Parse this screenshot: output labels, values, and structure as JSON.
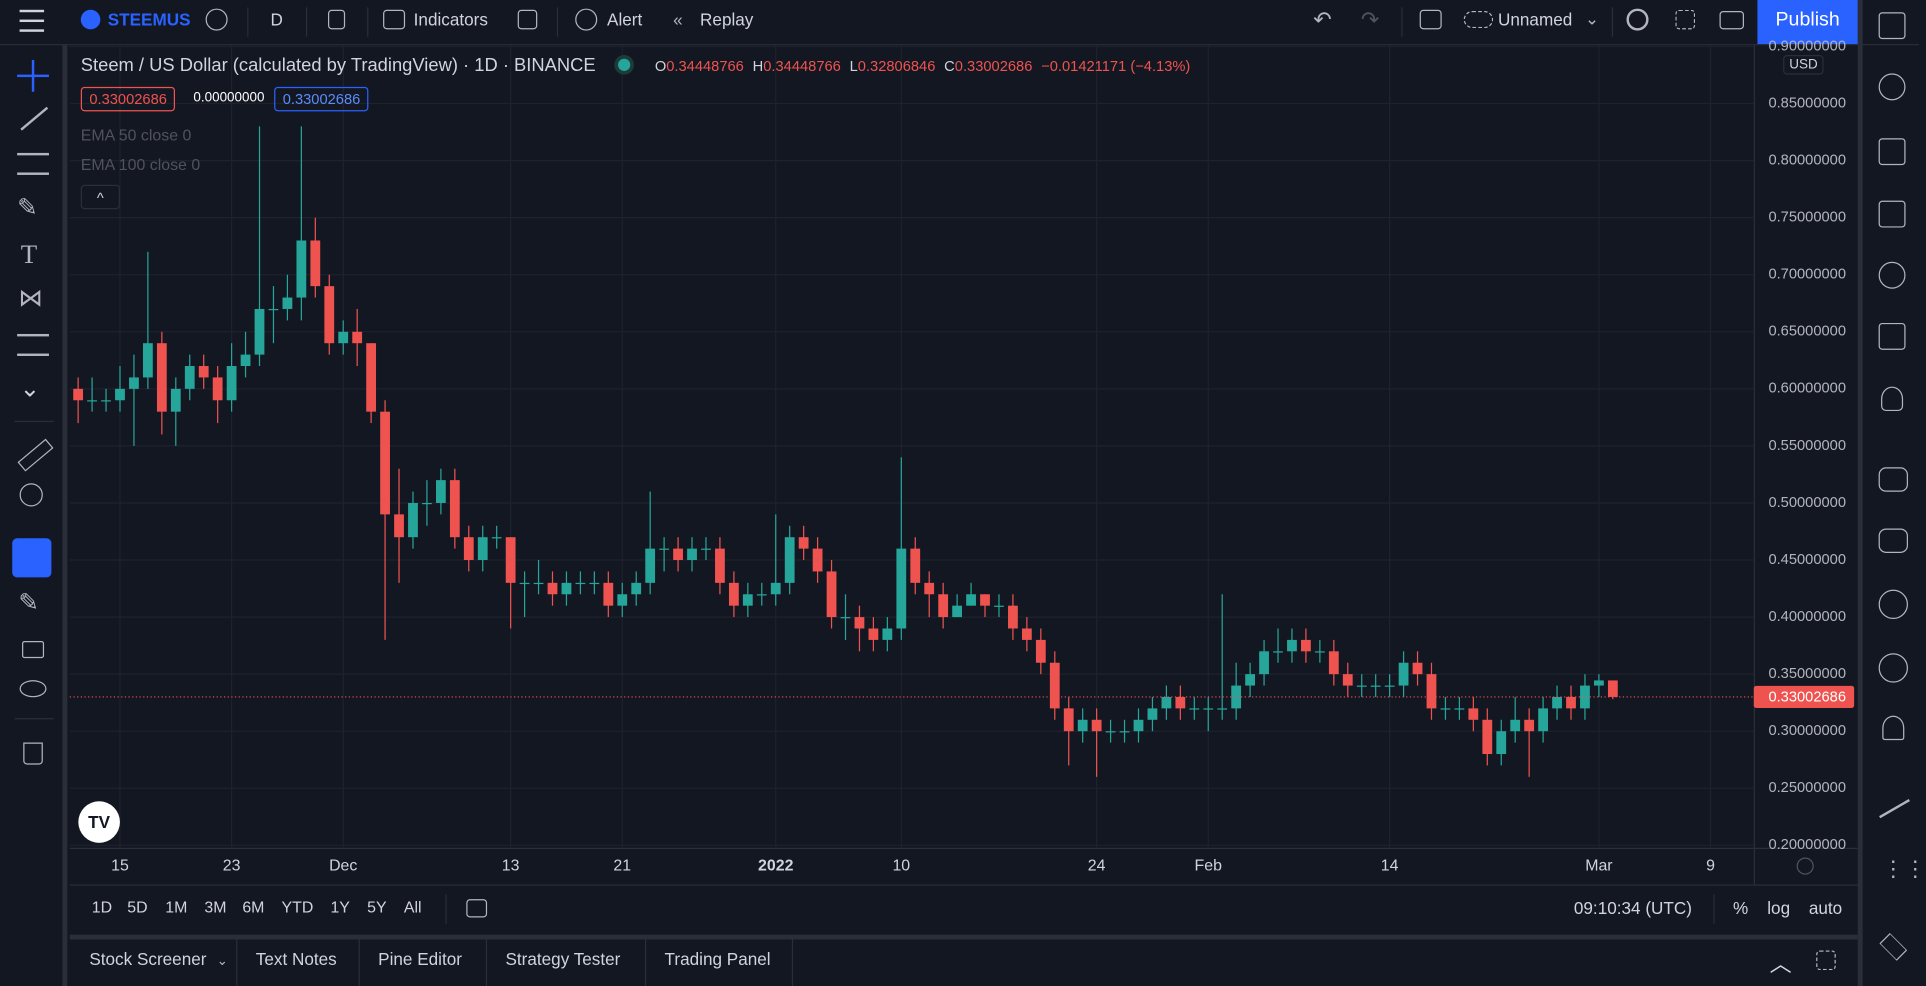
{
  "ui": {
    "symbol": "STEEMUS",
    "interval": "D",
    "indicators": "Indicators",
    "alert": "Alert",
    "replay": "Replay",
    "layout_name": "Unnamed",
    "publish": "Publish",
    "legend_title": "Steem / US Dollar (calculated by TradingView) · 1D · BINANCE",
    "o_label": "O",
    "h_label": "H",
    "l_label": "L",
    "c_label": "C",
    "change": "−0.01421171 (−4.13%)",
    "bid": "0.33002686",
    "spread": "0.00000000",
    "ask": "0.33002686",
    "ema50": "EMA 50 close 0",
    "ema100": "EMA 100 close 0",
    "currency": "USD",
    "ranges": [
      "1D",
      "5D",
      "1M",
      "3M",
      "6M",
      "YTD",
      "1Y",
      "5Y",
      "All"
    ],
    "clock": "09:10:34 (UTC)",
    "percent": "%",
    "log": "log",
    "auto": "auto",
    "tabs": [
      "Stock Screener",
      "Text Notes",
      "Pine Editor",
      "Strategy Tester",
      "Trading Panel"
    ]
  },
  "chart_data": {
    "type": "candlestick",
    "up_color": "#26a69a",
    "down_color": "#ef5350",
    "grid": true,
    "xlim": [
      -0.6,
      120.1
    ],
    "xticks": [
      {
        "value": 3,
        "label": "15"
      },
      {
        "value": 11,
        "label": "23"
      },
      {
        "value": 19,
        "label": "Dec"
      },
      {
        "value": 31,
        "label": "13"
      },
      {
        "value": 39,
        "label": "21"
      },
      {
        "value": 50,
        "label": "2022"
      },
      {
        "value": 59,
        "label": "10"
      },
      {
        "value": 73,
        "label": "24"
      },
      {
        "value": 81,
        "label": "Feb"
      },
      {
        "value": 94,
        "label": "14"
      },
      {
        "value": 109,
        "label": "Mar"
      },
      {
        "value": 117,
        "label": "9"
      }
    ],
    "ylim": [
      0.2,
      0.9
    ],
    "yticks": [
      {
        "value": 0.2,
        "label": "0.20000000"
      },
      {
        "value": 0.25,
        "label": "0.25000000"
      },
      {
        "value": 0.3,
        "label": "0.30000000"
      },
      {
        "value": 0.35,
        "label": "0.35000000"
      },
      {
        "value": 0.4,
        "label": "0.40000000"
      },
      {
        "value": 0.45,
        "label": "0.45000000"
      },
      {
        "value": 0.5,
        "label": "0.50000000"
      },
      {
        "value": 0.55,
        "label": "0.55000000"
      },
      {
        "value": 0.6,
        "label": "0.60000000"
      },
      {
        "value": 0.65,
        "label": "0.65000000"
      },
      {
        "value": 0.7,
        "label": "0.70000000"
      },
      {
        "value": 0.75,
        "label": "0.75000000"
      },
      {
        "value": 0.8,
        "label": "0.80000000"
      },
      {
        "value": 0.85,
        "label": "0.85000000"
      },
      {
        "value": 0.9,
        "label": "0.90000000"
      }
    ],
    "last_price": 0.33002686,
    "open": [
      0.6,
      0.59,
      0.59,
      0.59,
      0.6,
      0.61,
      0.64,
      0.58,
      0.6,
      0.62,
      0.61,
      0.59,
      0.62,
      0.63,
      0.67,
      0.67,
      0.68,
      0.73,
      0.69,
      0.64,
      0.65,
      0.64,
      0.58,
      0.49,
      0.47,
      0.5,
      0.5,
      0.52,
      0.47,
      0.45,
      0.47,
      0.47,
      0.43,
      0.43,
      0.43,
      0.42,
      0.43,
      0.43,
      0.43,
      0.41,
      0.42,
      0.43,
      0.46,
      0.46,
      0.45,
      0.46,
      0.46,
      0.43,
      0.41,
      0.42,
      0.42,
      0.43,
      0.47,
      0.46,
      0.44,
      0.4,
      0.4,
      0.39,
      0.38,
      0.39,
      0.46,
      0.43,
      0.42,
      0.4,
      0.41,
      0.42,
      0.41,
      0.41,
      0.39,
      0.38,
      0.36,
      0.32,
      0.3,
      0.31,
      0.3,
      0.3,
      0.3,
      0.31,
      0.32,
      0.33,
      0.32,
      0.32,
      0.32,
      0.32,
      0.34,
      0.35,
      0.37,
      0.37,
      0.38,
      0.37,
      0.37,
      0.35,
      0.34,
      0.34,
      0.34,
      0.34,
      0.36,
      0.35,
      0.32,
      0.32,
      0.32,
      0.31,
      0.28,
      0.3,
      0.31,
      0.3,
      0.32,
      0.33,
      0.32,
      0.34,
      0.34448766
    ],
    "high": [
      0.61,
      0.61,
      0.6,
      0.62,
      0.63,
      0.72,
      0.65,
      0.61,
      0.63,
      0.63,
      0.62,
      0.64,
      0.65,
      0.83,
      0.69,
      0.7,
      0.83,
      0.75,
      0.7,
      0.66,
      0.67,
      0.64,
      0.59,
      0.53,
      0.51,
      0.52,
      0.53,
      0.53,
      0.48,
      0.48,
      0.48,
      0.47,
      0.44,
      0.45,
      0.44,
      0.44,
      0.44,
      0.44,
      0.44,
      0.43,
      0.44,
      0.51,
      0.47,
      0.47,
      0.47,
      0.47,
      0.47,
      0.44,
      0.43,
      0.43,
      0.49,
      0.48,
      0.48,
      0.47,
      0.45,
      0.42,
      0.41,
      0.4,
      0.4,
      0.54,
      0.47,
      0.44,
      0.43,
      0.42,
      0.43,
      0.42,
      0.42,
      0.42,
      0.4,
      0.39,
      0.37,
      0.33,
      0.32,
      0.32,
      0.31,
      0.31,
      0.32,
      0.33,
      0.34,
      0.34,
      0.33,
      0.33,
      0.42,
      0.36,
      0.36,
      0.38,
      0.39,
      0.39,
      0.39,
      0.38,
      0.38,
      0.36,
      0.35,
      0.35,
      0.35,
      0.37,
      0.37,
      0.36,
      0.33,
      0.33,
      0.33,
      0.32,
      0.31,
      0.33,
      0.32,
      0.33,
      0.34,
      0.34,
      0.35,
      0.35,
      0.34448766
    ],
    "low": [
      0.57,
      0.58,
      0.58,
      0.58,
      0.55,
      0.6,
      0.56,
      0.55,
      0.59,
      0.6,
      0.57,
      0.58,
      0.61,
      0.62,
      0.64,
      0.66,
      0.66,
      0.68,
      0.63,
      0.63,
      0.62,
      0.57,
      0.38,
      0.43,
      0.46,
      0.48,
      0.49,
      0.46,
      0.44,
      0.44,
      0.46,
      0.39,
      0.4,
      0.42,
      0.41,
      0.41,
      0.42,
      0.42,
      0.4,
      0.4,
      0.41,
      0.42,
      0.44,
      0.44,
      0.44,
      0.45,
      0.42,
      0.4,
      0.4,
      0.41,
      0.41,
      0.42,
      0.45,
      0.43,
      0.39,
      0.38,
      0.37,
      0.37,
      0.37,
      0.38,
      0.42,
      0.4,
      0.39,
      0.4,
      0.41,
      0.4,
      0.4,
      0.38,
      0.37,
      0.35,
      0.31,
      0.27,
      0.29,
      0.26,
      0.29,
      0.29,
      0.29,
      0.3,
      0.31,
      0.31,
      0.31,
      0.3,
      0.31,
      0.31,
      0.33,
      0.34,
      0.36,
      0.36,
      0.36,
      0.36,
      0.34,
      0.33,
      0.33,
      0.33,
      0.33,
      0.33,
      0.34,
      0.31,
      0.31,
      0.31,
      0.3,
      0.27,
      0.27,
      0.29,
      0.26,
      0.29,
      0.31,
      0.31,
      0.31,
      0.33,
      0.32806846
    ],
    "close": [
      0.59,
      0.59,
      0.59,
      0.6,
      0.61,
      0.64,
      0.58,
      0.6,
      0.62,
      0.61,
      0.59,
      0.62,
      0.63,
      0.67,
      0.67,
      0.68,
      0.73,
      0.69,
      0.64,
      0.65,
      0.64,
      0.58,
      0.49,
      0.47,
      0.5,
      0.5,
      0.52,
      0.47,
      0.45,
      0.47,
      0.47,
      0.43,
      0.43,
      0.43,
      0.42,
      0.43,
      0.43,
      0.43,
      0.41,
      0.42,
      0.43,
      0.46,
      0.46,
      0.45,
      0.46,
      0.46,
      0.43,
      0.41,
      0.42,
      0.42,
      0.43,
      0.47,
      0.46,
      0.44,
      0.4,
      0.4,
      0.39,
      0.38,
      0.39,
      0.46,
      0.43,
      0.42,
      0.4,
      0.41,
      0.42,
      0.41,
      0.41,
      0.39,
      0.38,
      0.36,
      0.32,
      0.3,
      0.31,
      0.3,
      0.3,
      0.3,
      0.31,
      0.32,
      0.33,
      0.32,
      0.32,
      0.32,
      0.32,
      0.34,
      0.35,
      0.37,
      0.37,
      0.38,
      0.37,
      0.37,
      0.35,
      0.34,
      0.34,
      0.34,
      0.34,
      0.36,
      0.35,
      0.32,
      0.32,
      0.32,
      0.31,
      0.28,
      0.3,
      0.31,
      0.3,
      0.32,
      0.33,
      0.32,
      0.34,
      0.34448766,
      0.33002686
    ]
  }
}
